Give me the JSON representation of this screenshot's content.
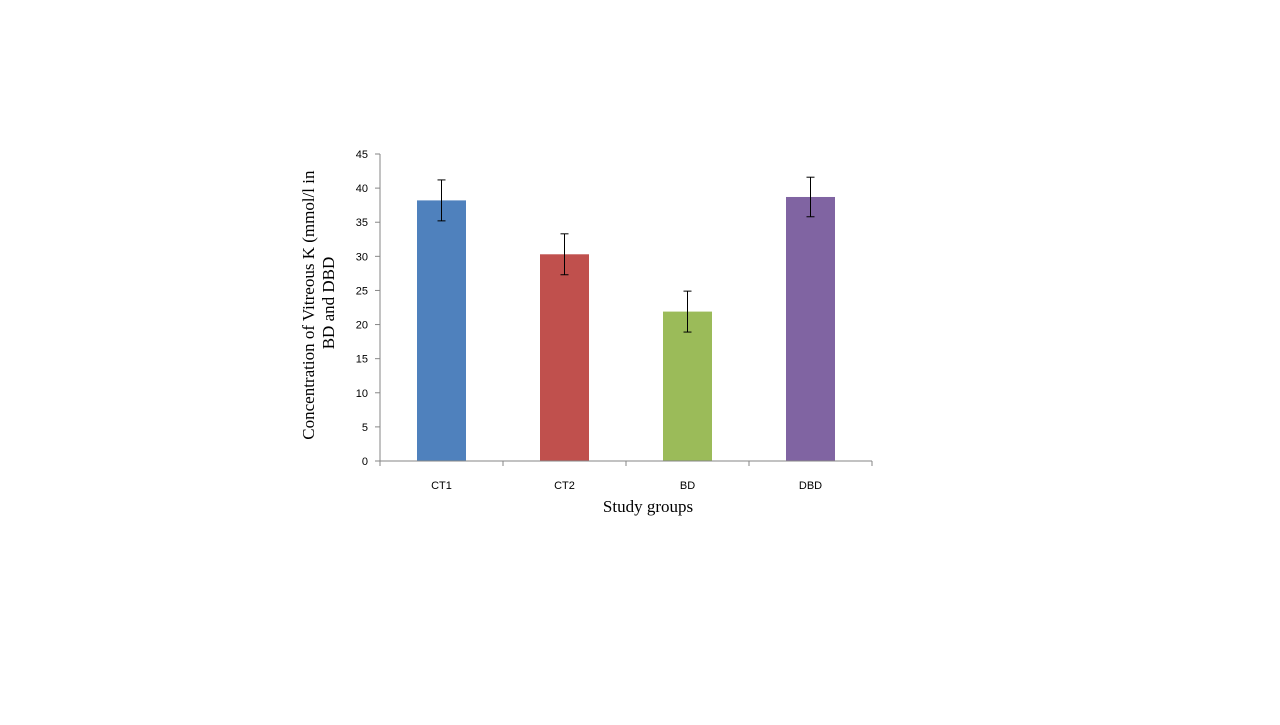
{
  "chart_data": {
    "type": "bar",
    "title": "",
    "categories": [
      "CT1",
      "CT2",
      "BD",
      "DBD"
    ],
    "values": [
      38.2,
      30.3,
      21.9,
      38.7
    ],
    "error": [
      3.0,
      3.0,
      3.0,
      2.9
    ],
    "colors": [
      "#4f81bd",
      "#c0504d",
      "#9bbb59",
      "#8064a2"
    ],
    "xlabel": "Study groups",
    "ylabel_lines": [
      "Concentration of Vitreous K (mmol/l in",
      "BD and DBD"
    ],
    "ylim": [
      0,
      45
    ],
    "yticks": [
      "0",
      "5",
      "10",
      "15",
      "20",
      "25",
      "30",
      "35",
      "40",
      "45"
    ],
    "grid": false,
    "legend": "none"
  }
}
